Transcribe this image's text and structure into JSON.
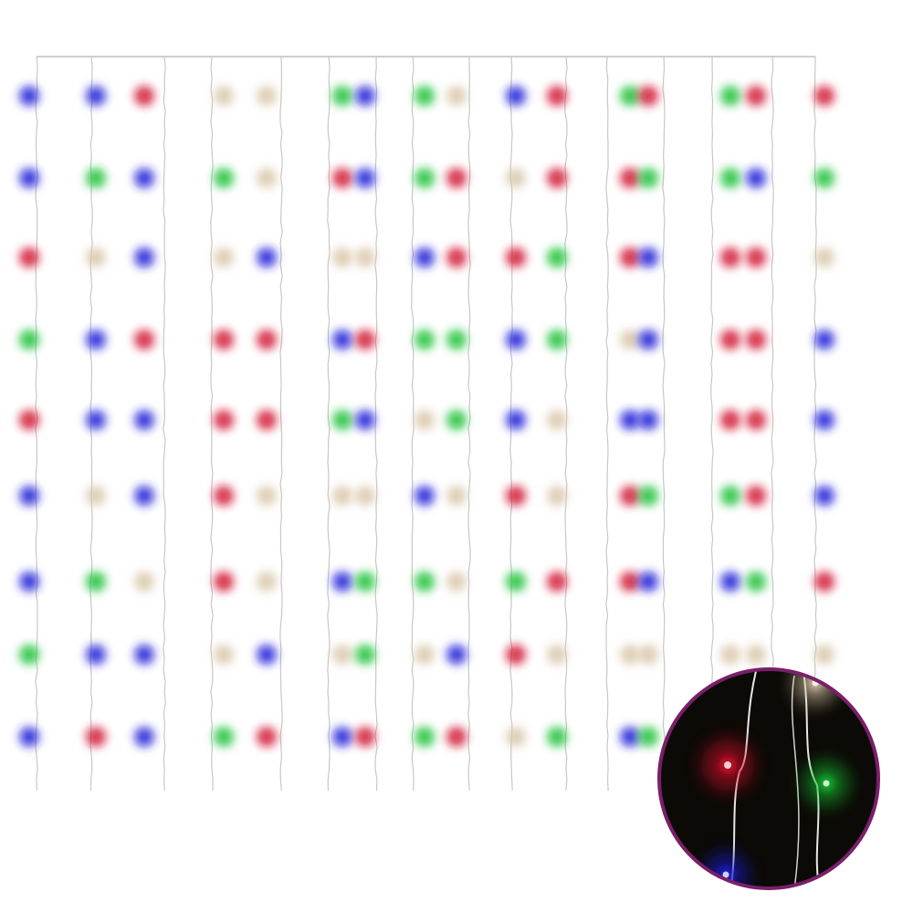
{
  "palette": {
    "R": "#d0102a",
    "G": "#18c030",
    "B": "#1a1ad8",
    "W": "#d8c6a8",
    "wire": "#c8c8c8",
    "inset_border": "#7a1f6a",
    "inset_bg": "#0c0a06"
  },
  "led_grid": [
    [
      "B",
      "B",
      "R",
      "W",
      "W",
      "G",
      "B",
      "G",
      "W",
      "B",
      "R",
      "G",
      "R",
      "G",
      "R",
      "R"
    ],
    [
      "B",
      "G",
      "B",
      "G",
      "W",
      "R",
      "B",
      "G",
      "R",
      "W",
      "R",
      "R",
      "G",
      "G",
      "B",
      "G"
    ],
    [
      "R",
      "W",
      "B",
      "W",
      "B",
      "W",
      "W",
      "B",
      "R",
      "R",
      "G",
      "R",
      "B",
      "R",
      "R",
      "W"
    ],
    [
      "G",
      "B",
      "R",
      "R",
      "R",
      "B",
      "R",
      "G",
      "G",
      "B",
      "G",
      "W",
      "B",
      "R",
      "R",
      "B"
    ],
    [
      "R",
      "B",
      "B",
      "R",
      "R",
      "G",
      "B",
      "W",
      "G",
      "B",
      "W",
      "B",
      "B",
      "R",
      "R",
      "B"
    ],
    [
      "B",
      "W",
      "B",
      "R",
      "W",
      "W",
      "W",
      "B",
      "W",
      "R",
      "W",
      "R",
      "G",
      "G",
      "R",
      "B"
    ],
    [
      "B",
      "G",
      "W",
      "R",
      "W",
      "B",
      "G",
      "G",
      "W",
      "G",
      "R",
      "R",
      "B",
      "B",
      "G",
      "R"
    ],
    [
      "G",
      "B",
      "B",
      "W",
      "B",
      "W",
      "G",
      "W",
      "B",
      "R",
      "W",
      "W",
      "W",
      "W",
      "W",
      "W"
    ],
    [
      "B",
      "R",
      "B",
      "G",
      "R",
      "B",
      "R",
      "G",
      "R",
      "W",
      "G",
      "B",
      "G",
      null,
      null,
      null
    ]
  ],
  "inset_leds": [
    "R",
    "G",
    "B",
    "W"
  ]
}
